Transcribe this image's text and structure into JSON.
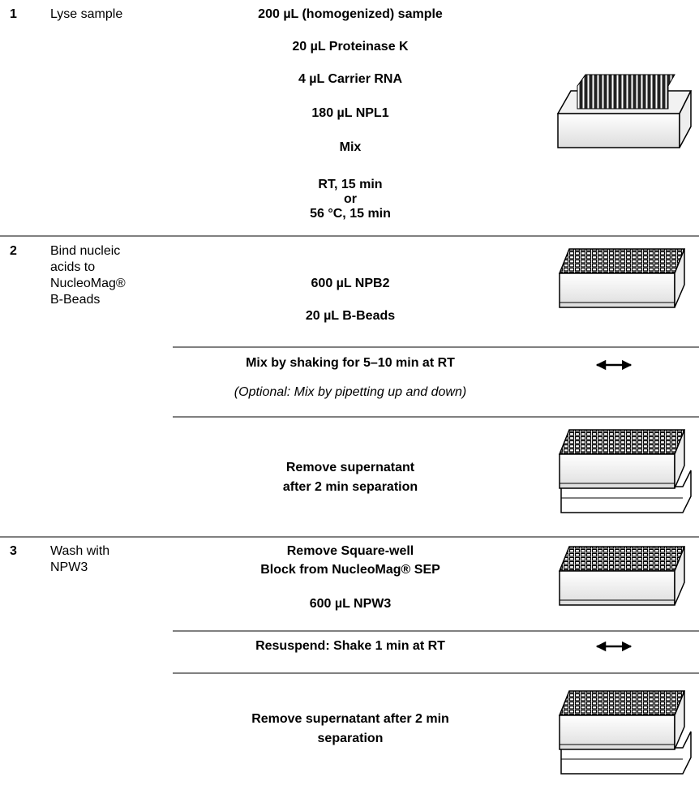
{
  "steps": [
    {
      "number": "1",
      "label": [
        "Lyse sample"
      ],
      "blocks": [
        {
          "lines": [
            "200 µL (homogenized) sample",
            "20 µL Proteinase K",
            "4 µL Carrier RNA",
            "180 µL NPL1",
            "Mix",
            "RT, 15 min",
            "or",
            "56 °C, 15 min"
          ]
        }
      ]
    },
    {
      "number": "2",
      "label": [
        "Bind nucleic",
        "acids to",
        "NucleoMag®",
        "B-Beads"
      ],
      "blocks": [
        {
          "lines": [
            "600 µL NPB2",
            "20 µL B-Beads"
          ]
        },
        {
          "lines": [
            "Mix by shaking for 5–10 min at RT",
            "(Optional: Mix by pipetting up and down)"
          ]
        },
        {
          "lines": [
            "Remove supernatant",
            "after 2 min separation"
          ]
        }
      ]
    },
    {
      "number": "3",
      "label": [
        "Wash with",
        "NPW3"
      ],
      "blocks": [
        {
          "lines": [
            "Remove Square-well",
            "Block from NucleoMag® SEP",
            "600 µL NPW3"
          ]
        },
        {
          "lines": [
            "Resuspend: Shake 1 min at RT"
          ]
        },
        {
          "lines": [
            "Remove supernatant after 2 min",
            "separation"
          ]
        }
      ]
    }
  ]
}
